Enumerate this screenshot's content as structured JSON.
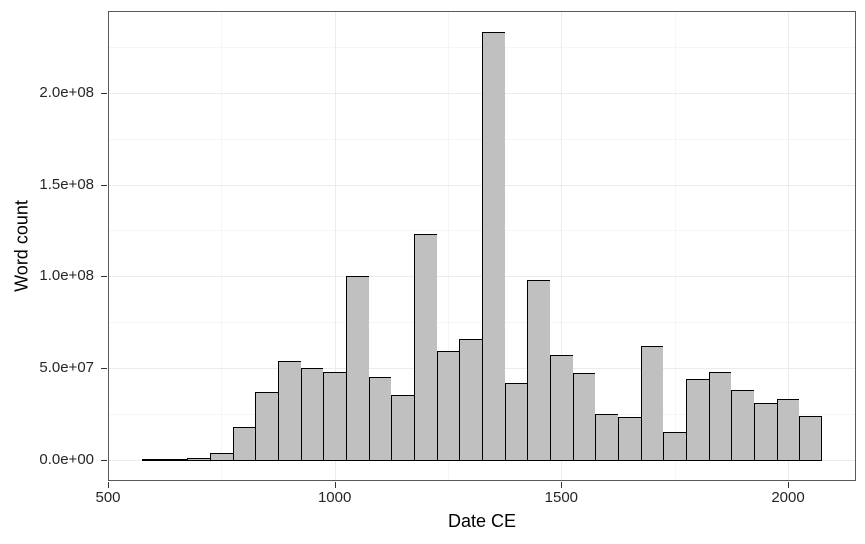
{
  "figure": {
    "background_color": "#ffffff"
  },
  "chart_data": {
    "type": "bar",
    "subtype": "histogram",
    "title": "",
    "xlabel": "Date CE",
    "ylabel": "Word count",
    "legend": "none",
    "grid": true,
    "bin_width": 50,
    "bin_centers": [
      600,
      650,
      700,
      750,
      800,
      850,
      900,
      950,
      1000,
      1050,
      1100,
      1150,
      1200,
      1250,
      1300,
      1350,
      1400,
      1450,
      1500,
      1550,
      1600,
      1650,
      1700,
      1750,
      1800,
      1850,
      1900,
      1950,
      2000,
      2050
    ],
    "values": [
      200000,
      300000,
      1000000,
      3500000,
      18000000,
      37000000,
      54000000,
      50000000,
      48000000,
      100000000,
      45000000,
      35000000,
      123000000,
      59000000,
      66000000,
      233000000,
      42000000,
      98000000,
      57000000,
      47000000,
      25000000,
      23000000,
      62000000,
      15000000,
      44000000,
      48000000,
      38000000,
      31000000,
      33000000,
      24000000
    ],
    "x_ticks": [
      {
        "value": 500,
        "label": "500"
      },
      {
        "value": 1000,
        "label": "1000"
      },
      {
        "value": 1500,
        "label": "1500"
      },
      {
        "value": 2000,
        "label": "2000"
      }
    ],
    "y_ticks": [
      {
        "value": 0,
        "label": "0.0e+00"
      },
      {
        "value": 50000000,
        "label": "5.0e+07"
      },
      {
        "value": 100000000,
        "label": "1.0e+08"
      },
      {
        "value": 150000000,
        "label": "1.5e+08"
      },
      {
        "value": 200000000,
        "label": "2.0e+08"
      }
    ],
    "x_minor_ticks": [
      750,
      1250,
      1750
    ],
    "y_minor_ticks": [
      25000000,
      75000000,
      125000000,
      175000000,
      225000000
    ],
    "x_domain": [
      500,
      2150
    ],
    "y_domain": [
      -11650000,
      244650000
    ]
  },
  "colors": {
    "bar_fill": "#c0c0c0",
    "bar_stroke": "#000000",
    "panel_border": "#595959",
    "grid_major": "#ececec",
    "grid_minor": "#f5f5f5",
    "tick_mark": "#333333",
    "tick_label": "#262626",
    "axis_title": "#000000"
  }
}
